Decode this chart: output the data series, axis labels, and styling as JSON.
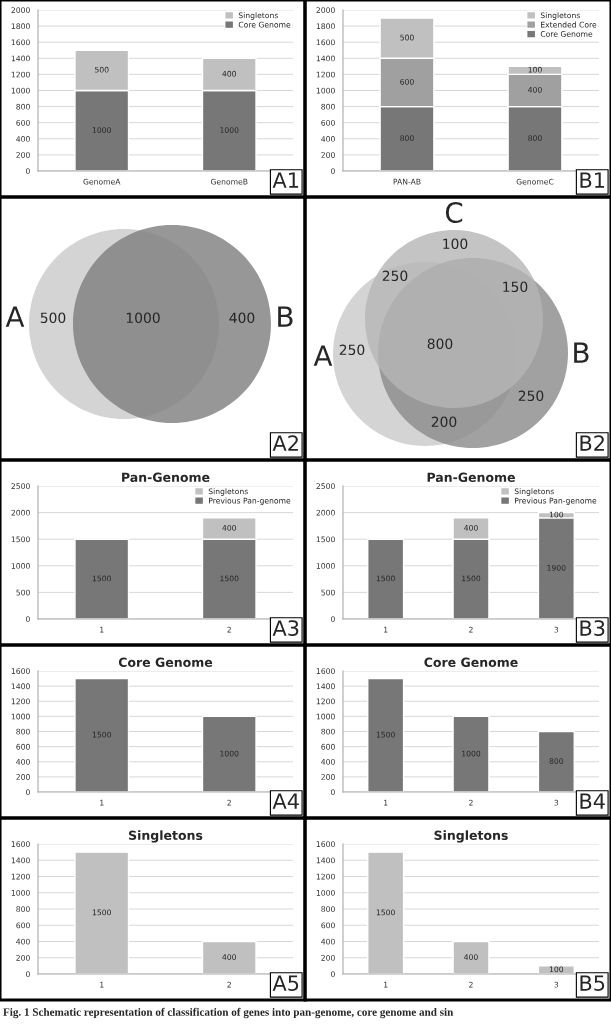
{
  "chart_data": [
    {
      "type": "bar",
      "stacked": true,
      "categories": [
        "GenomeA",
        "GenomeB"
      ],
      "series": [
        {
          "name": "Core Genome",
          "color": "#777777",
          "values": [
            1000,
            1000
          ]
        },
        {
          "name": "Singletons",
          "color": "#c0c0c0",
          "values": [
            500,
            400
          ]
        }
      ],
      "ylim": [
        0,
        2000
      ],
      "yticks": [
        0,
        200,
        400,
        600,
        800,
        1000,
        1200,
        1400,
        1600,
        1800,
        2000
      ],
      "grid": "y",
      "legend": "top right",
      "data_labels": true,
      "annotations": [
        "A1"
      ]
    },
    {
      "type": "bar",
      "stacked": true,
      "categories": [
        "PAN-AB",
        "GenomeC"
      ],
      "series": [
        {
          "name": "Core Genome",
          "color": "#777777",
          "values": [
            800,
            800
          ]
        },
        {
          "name": "Extended Core",
          "color": "#a0a0a0",
          "values": [
            600,
            400
          ]
        },
        {
          "name": "Singletons",
          "color": "#c0c0c0",
          "values": [
            500,
            100
          ]
        }
      ],
      "ylim": [
        0,
        2000
      ],
      "yticks": [
        0,
        200,
        400,
        600,
        800,
        1000,
        1200,
        1400,
        1600,
        1800,
        2000
      ],
      "grid": "y",
      "legend": "top right",
      "data_labels": true,
      "annotations": [
        "B1"
      ]
    },
    {
      "type": "other",
      "annotations": [
        "A2",
        "A",
        "B",
        "500",
        "1000",
        "400"
      ]
    },
    {
      "type": "other",
      "annotations": [
        "B2",
        "A",
        "B",
        "C",
        "250",
        "250",
        "100",
        "150",
        "800",
        "250",
        "200"
      ]
    },
    {
      "type": "bar",
      "stacked": true,
      "title": "Pan-Genome",
      "categories": [
        "1",
        "2"
      ],
      "series": [
        {
          "name": "Previous Pan-genome",
          "color": "#777777",
          "values": [
            1500,
            1500
          ]
        },
        {
          "name": "Singletons",
          "color": "#c0c0c0",
          "values": [
            null,
            400
          ]
        }
      ],
      "ylim": [
        0,
        2500
      ],
      "yticks": [
        0,
        500,
        1000,
        1500,
        2000,
        2500
      ],
      "grid": "y",
      "legend": "top right",
      "data_labels": true,
      "annotations": [
        "A3"
      ]
    },
    {
      "type": "bar",
      "stacked": true,
      "title": "Pan-Genome",
      "categories": [
        "1",
        "2",
        "3"
      ],
      "series": [
        {
          "name": "Previous Pan-genome",
          "color": "#777777",
          "values": [
            1500,
            1500,
            1900
          ]
        },
        {
          "name": "Singletons",
          "color": "#c0c0c0",
          "values": [
            null,
            400,
            100
          ]
        }
      ],
      "ylim": [
        0,
        2500
      ],
      "yticks": [
        0,
        500,
        1000,
        1500,
        2000,
        2500
      ],
      "grid": "y",
      "legend": "top right",
      "data_labels": true,
      "annotations": [
        "B3"
      ]
    },
    {
      "type": "bar",
      "title": "Core Genome",
      "categories": [
        "1",
        "2"
      ],
      "values": [
        1500,
        1000
      ],
      "color": "#777777",
      "ylim": [
        0,
        1600
      ],
      "yticks": [
        0,
        200,
        400,
        600,
        800,
        1000,
        1200,
        1400,
        1600
      ],
      "grid": "y",
      "data_labels": true,
      "annotations": [
        "A4"
      ]
    },
    {
      "type": "bar",
      "title": "Core Genome",
      "categories": [
        "1",
        "2",
        "3"
      ],
      "values": [
        1500,
        1000,
        800
      ],
      "color": "#777777",
      "ylim": [
        0,
        1600
      ],
      "yticks": [
        0,
        200,
        400,
        600,
        800,
        1000,
        1200,
        1400,
        1600
      ],
      "grid": "y",
      "data_labels": true,
      "annotations": [
        "B4"
      ]
    },
    {
      "type": "bar",
      "title": "Singletons",
      "categories": [
        "1",
        "2"
      ],
      "values": [
        1500,
        400
      ],
      "color": "#c0c0c0",
      "ylim": [
        0,
        1600
      ],
      "yticks": [
        0,
        200,
        400,
        600,
        800,
        1000,
        1200,
        1400,
        1600
      ],
      "grid": "y",
      "data_labels": true,
      "annotations": [
        "A5"
      ]
    },
    {
      "type": "bar",
      "title": "Singletons",
      "categories": [
        "1",
        "2",
        "3"
      ],
      "values": [
        1500,
        400,
        100
      ],
      "color": "#c0c0c0",
      "ylim": [
        0,
        1600
      ],
      "yticks": [
        0,
        200,
        400,
        600,
        800,
        1000,
        1200,
        1400,
        1600
      ],
      "grid": "y",
      "data_labels": true,
      "annotations": [
        "B5",
        "Fig. 1 Schematic representation of classification of genes into pan-genome, core genome and sin"
      ]
    }
  ]
}
